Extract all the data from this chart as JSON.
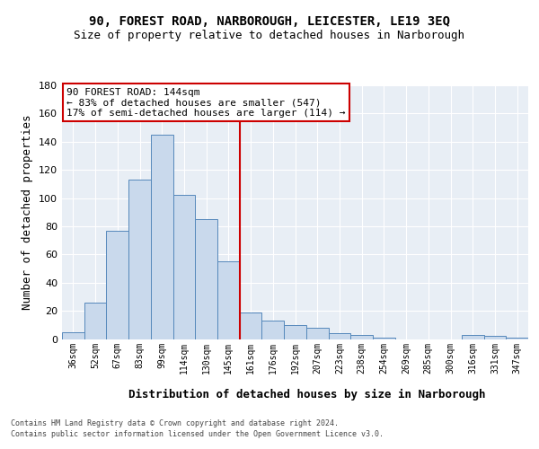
{
  "title_line1": "90, FOREST ROAD, NARBOROUGH, LEICESTER, LE19 3EQ",
  "title_line2": "Size of property relative to detached houses in Narborough",
  "xlabel": "Distribution of detached houses by size in Narborough",
  "ylabel": "Number of detached properties",
  "bar_labels": [
    "36sqm",
    "52sqm",
    "67sqm",
    "83sqm",
    "99sqm",
    "114sqm",
    "130sqm",
    "145sqm",
    "161sqm",
    "176sqm",
    "192sqm",
    "207sqm",
    "223sqm",
    "238sqm",
    "254sqm",
    "269sqm",
    "285sqm",
    "300sqm",
    "316sqm",
    "331sqm",
    "347sqm"
  ],
  "bar_values": [
    5,
    26,
    77,
    113,
    145,
    102,
    85,
    55,
    19,
    13,
    10,
    8,
    4,
    3,
    1,
    0,
    0,
    0,
    3,
    2,
    1
  ],
  "bar_color": "#c9d9ec",
  "bar_edge_color": "#5588bb",
  "vline_x": 7.5,
  "vline_color": "#cc0000",
  "annotation_title": "90 FOREST ROAD: 144sqm",
  "annotation_line1": "← 83% of detached houses are smaller (547)",
  "annotation_line2": "17% of semi-detached houses are larger (114) →",
  "annotation_box_color": "#ffffff",
  "annotation_box_edge": "#cc0000",
  "ylim": [
    0,
    180
  ],
  "yticks": [
    0,
    20,
    40,
    60,
    80,
    100,
    120,
    140,
    160,
    180
  ],
  "grid_color": "#d0dce8",
  "background_color": "#e8eef5",
  "footer_line1": "Contains HM Land Registry data © Crown copyright and database right 2024.",
  "footer_line2": "Contains public sector information licensed under the Open Government Licence v3.0.",
  "title_fontsize": 10,
  "subtitle_fontsize": 9,
  "axis_label_fontsize": 9,
  "tick_fontsize": 8,
  "annotation_fontsize": 8,
  "footer_fontsize": 6
}
